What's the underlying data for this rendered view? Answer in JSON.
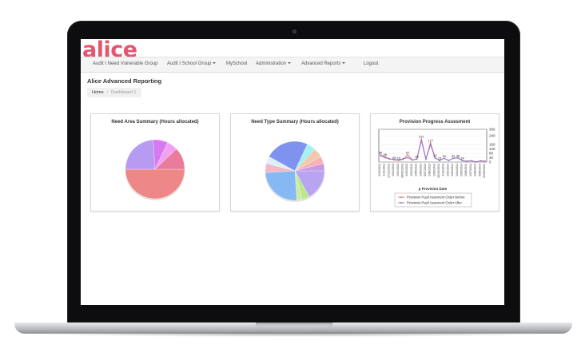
{
  "app": {
    "logo": "alice"
  },
  "navbar": {
    "items": [
      {
        "label": "Audit t Need Vulnerable Group",
        "has_caret": false
      },
      {
        "label": "Audit t School Group",
        "has_caret": true
      },
      {
        "label": "MySchool",
        "has_caret": false
      },
      {
        "label": "Administration",
        "has_caret": true
      },
      {
        "label": "Advanced Reports",
        "has_caret": true
      },
      {
        "label": "Logout",
        "has_caret": false
      }
    ]
  },
  "page": {
    "title": "Alice Advanced Reporting"
  },
  "breadcrumb": {
    "home": "Home",
    "separator": "/",
    "current": "Dashboard 1"
  },
  "panels": {
    "need_area": {
      "title": "Need Area Summary (Hours allocated)"
    },
    "need_type": {
      "title": "Need Type Summary (Hours allocated)"
    },
    "provision": {
      "title": "Provision Progress Assesment"
    }
  },
  "chart_data": [
    {
      "type": "pie",
      "title": "Need Area Summary (Hours allocated)",
      "slices": [
        {
          "value": 50,
          "color": "#ee8888"
        },
        {
          "value": 24,
          "color": "#b79bf2"
        },
        {
          "value": 8,
          "color": "#d879f2"
        },
        {
          "value": 6,
          "color": "#f2a1f2"
        },
        {
          "value": 12,
          "color": "#e97b9b"
        }
      ]
    },
    {
      "type": "pie",
      "title": "Need Type Summary (Hours allocated)",
      "slices": [
        {
          "value": 17,
          "color": "#b9a4f2"
        },
        {
          "value": 4,
          "color": "#b8e98a"
        },
        {
          "value": 3,
          "color": "#cfeaa0"
        },
        {
          "value": 25,
          "color": "#86b9f4"
        },
        {
          "value": 5,
          "color": "#f2b8c6"
        },
        {
          "value": 4,
          "color": "#ddf0f8"
        },
        {
          "value": 24,
          "color": "#7e93f0"
        },
        {
          "value": 5,
          "color": "#a5f0f0"
        },
        {
          "value": 5,
          "color": "#f2c8b0"
        },
        {
          "value": 4,
          "color": "#f7b3b3"
        },
        {
          "value": 4,
          "color": "#c79be4"
        }
      ]
    },
    {
      "type": "line",
      "title": "Provision Progress Assesment",
      "xlabel": "p Provision Date",
      "ylabel": "",
      "ylim": [
        0,
        300
      ],
      "yticks": [
        0,
        40,
        80,
        120,
        160,
        240,
        300
      ],
      "x": [
        "3/10/2012",
        "1/11/2012",
        "17/12/2012",
        "4/01/2013",
        "4/02/2013",
        "28/02/2013",
        "1/03/2013",
        "4/03/2013",
        "1/05/2013",
        "1/06/2013",
        "5/07/2013",
        "1/08/2013",
        "1/09/2013",
        "10/10/2013",
        "1/11/2013",
        "1/02/2014",
        "1/03/2014",
        "1/04/2014",
        "1/05/2014",
        "1/06/2014",
        "1/07/2014",
        "1/08/2014",
        "9/09/2014",
        "22/09/2014"
      ],
      "series": [
        {
          "name": "Provision Pupil Assement Order Before",
          "color": "#e57373",
          "values": [
            66,
            48,
            30,
            20,
            16,
            25,
            67,
            18,
            28,
            211,
            28,
            177,
            42,
            13,
            34,
            15,
            34,
            38,
            14,
            7,
            12,
            1,
            11,
            7
          ]
        },
        {
          "name": "Provision Pupil Assement Order After",
          "color": "#9575cd",
          "values": [
            60,
            40,
            28,
            24,
            18,
            30,
            40,
            20,
            26,
            197,
            26,
            161,
            38,
            15,
            34,
            15,
            34,
            38,
            14,
            7,
            12,
            1,
            11,
            7
          ]
        }
      ],
      "data_labels": [
        "66",
        "48",
        "",
        "20",
        "16",
        "",
        "67",
        "",
        "28",
        "211",
        "",
        "177",
        "42",
        "13",
        "34",
        "",
        "34",
        "38",
        "14",
        "",
        "",
        "",
        "",
        ""
      ]
    }
  ]
}
